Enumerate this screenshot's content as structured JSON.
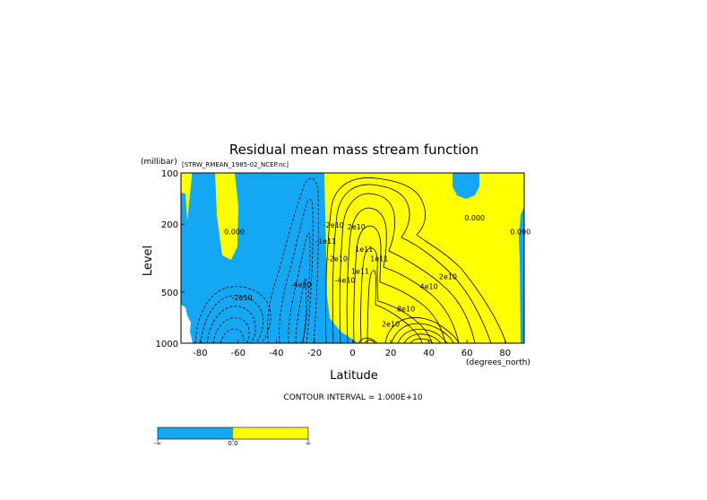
{
  "chart_data": {
    "type": "contour",
    "title": "Residual mean mass stream function",
    "subtitle": "[STRW_RMEAN_1985-02_NCEP.nc]",
    "xlabel": "Latitude",
    "x_units": "(degrees_north)",
    "ylabel": "Level",
    "y_units": "(millibar)",
    "xlim": [
      -90,
      90
    ],
    "ylim": [
      1000,
      100
    ],
    "y_scale": "log",
    "x_ticks": [
      -80,
      -60,
      -40,
      -20,
      0,
      20,
      40,
      60,
      80
    ],
    "y_ticks": [
      100,
      200,
      500,
      1000
    ],
    "contour_interval_text": "CONTOUR INTERVAL = 1.000E+10",
    "contour_labels": [
      {
        "text": "0.000",
        "x": -62,
        "y": 230
      },
      {
        "text": "-2e10",
        "x": -58,
        "y": 560
      },
      {
        "text": "-4e10",
        "x": -27,
        "y": 470
      },
      {
        "text": "-1e11",
        "x": -14,
        "y": 260
      },
      {
        "text": "-2e10",
        "x": -10,
        "y": 210
      },
      {
        "text": "-2e10",
        "x": -8,
        "y": 330
      },
      {
        "text": "-4e10",
        "x": -4,
        "y": 440
      },
      {
        "text": "2e10",
        "x": 2,
        "y": 215
      },
      {
        "text": "1e11",
        "x": 6,
        "y": 290
      },
      {
        "text": "1e11",
        "x": 14,
        "y": 330
      },
      {
        "text": "1e11",
        "x": 4,
        "y": 390
      },
      {
        "text": "2e10",
        "x": 50,
        "y": 420
      },
      {
        "text": "4e10",
        "x": 40,
        "y": 480
      },
      {
        "text": "8e10",
        "x": 28,
        "y": 650
      },
      {
        "text": "2e10",
        "x": 20,
        "y": 800
      },
      {
        "text": "0.000",
        "x": 64,
        "y": 190
      },
      {
        "text": "0.000",
        "x": 88,
        "y": 230
      }
    ],
    "legend": {
      "colors": [
        "#14a7f4",
        "#ffff00"
      ],
      "labels": [
        "-∞",
        "0.0",
        "∞"
      ]
    },
    "fill_colors": {
      "negative": "#14a7f4",
      "positive": "#ffff00"
    }
  }
}
